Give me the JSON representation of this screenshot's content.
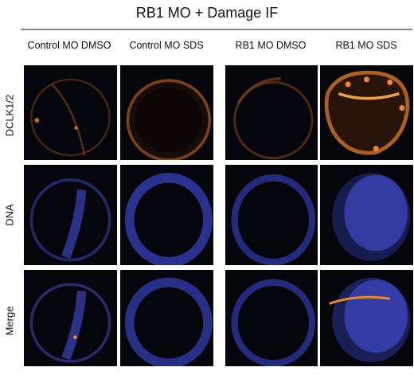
{
  "figure": {
    "title": "RB1 MO + Damage IF",
    "columns": [
      "Control MO DMSO",
      "Control MO SDS",
      "RB1 MO DMSO",
      "RB1 MO SDS"
    ],
    "rows": [
      "DCLK1/2",
      "DNA",
      "Merge"
    ]
  },
  "colors": {
    "dclk_stain": "#e8892a",
    "dna_stain": "#4a55e8",
    "background": "#05060c"
  }
}
